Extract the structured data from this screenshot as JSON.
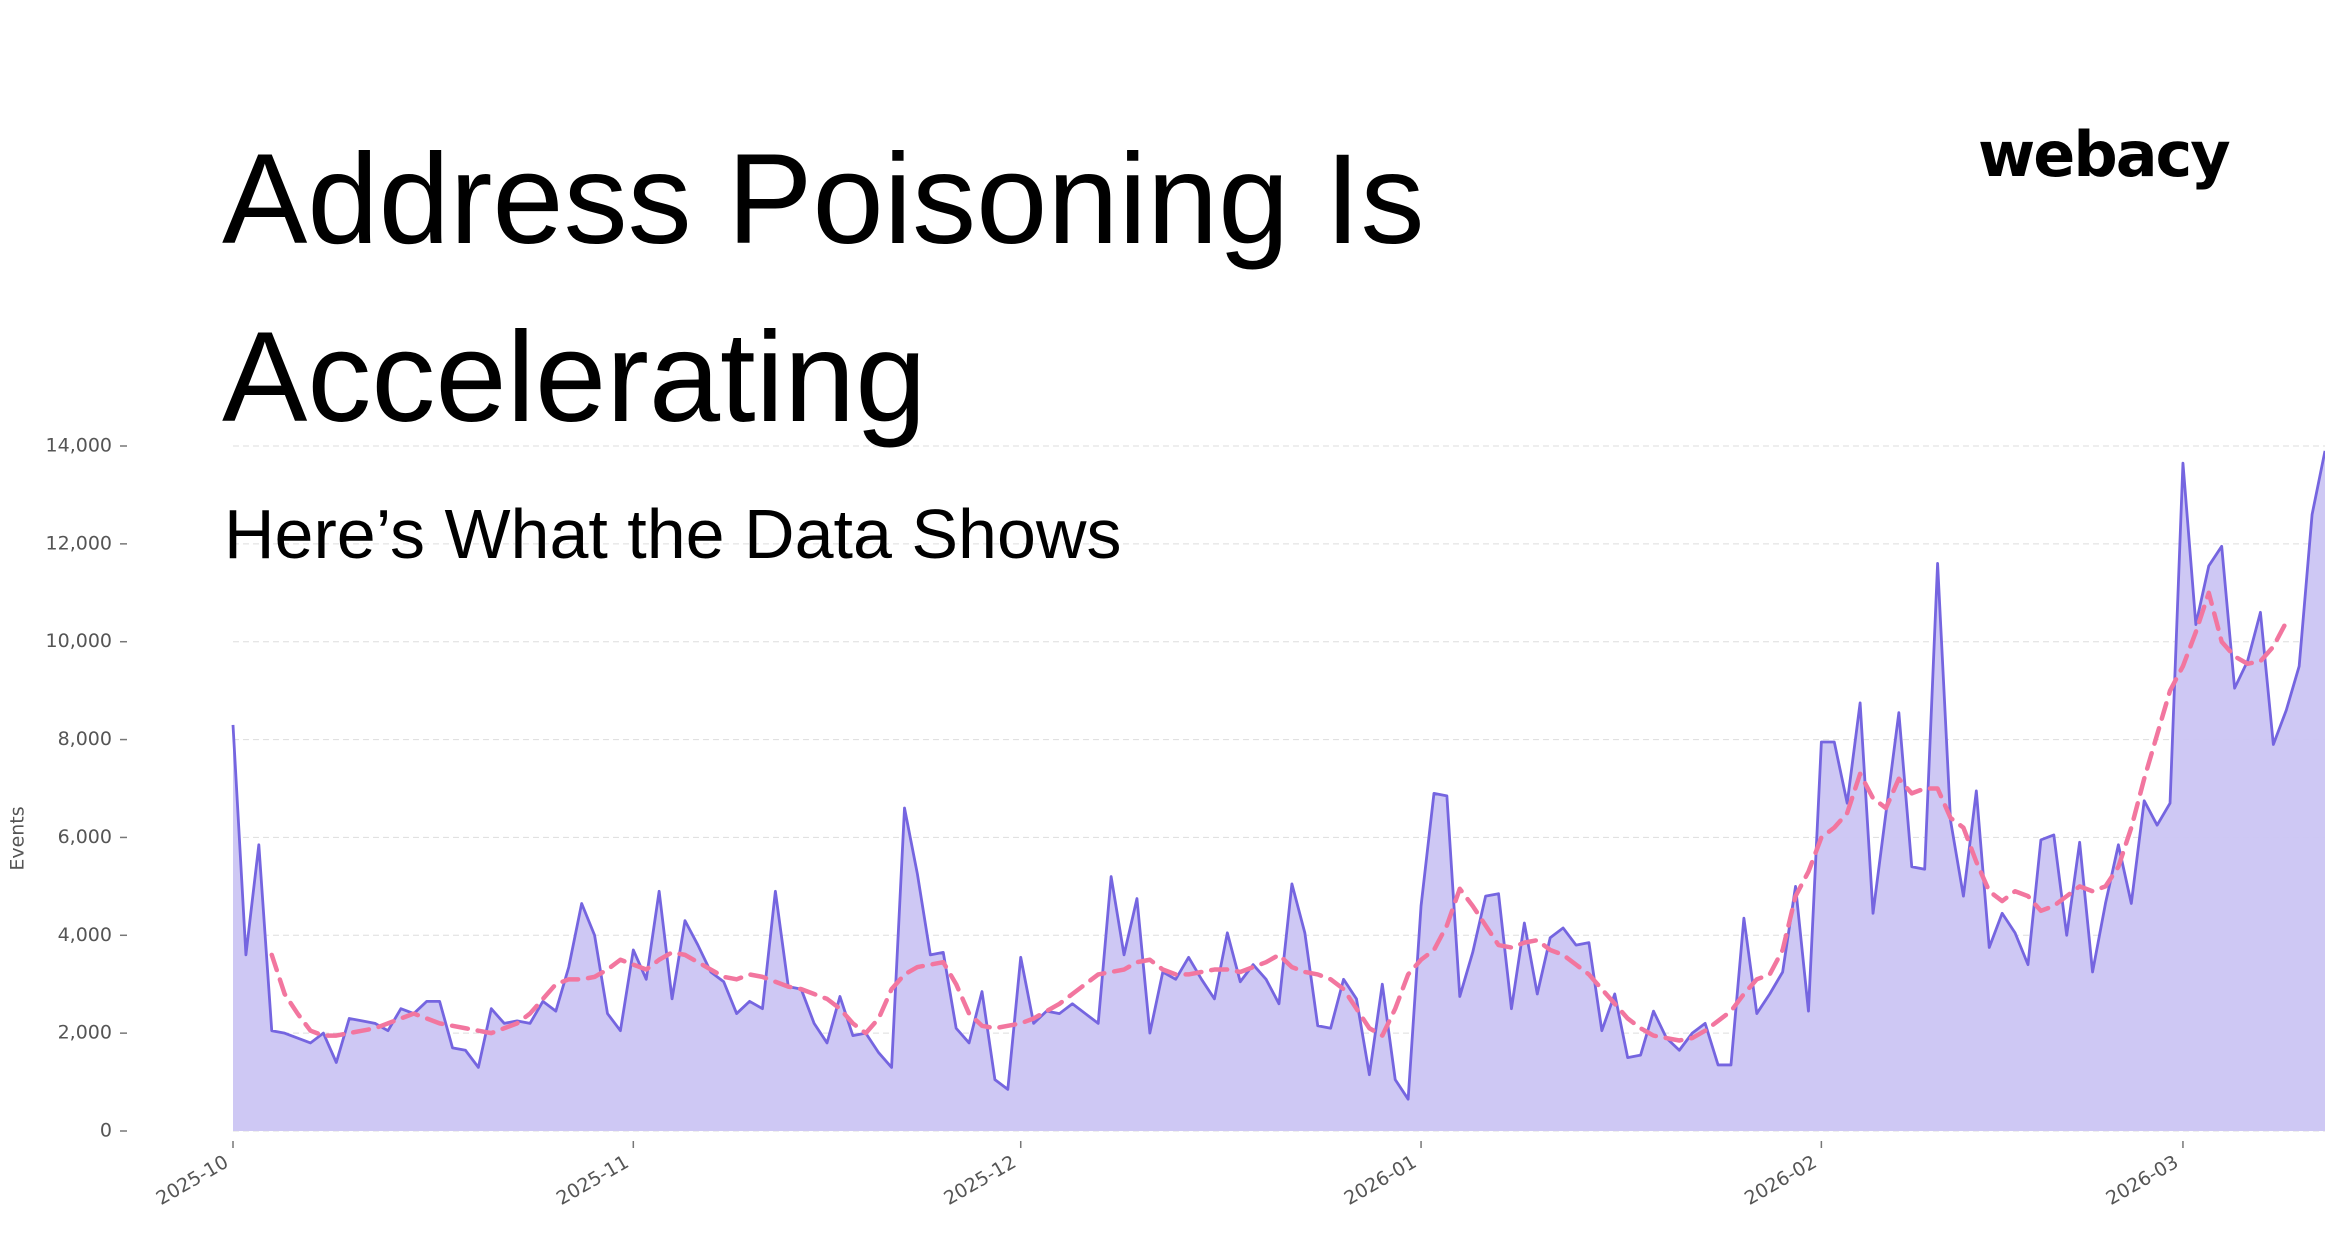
{
  "logo": "webacy",
  "chart_data": {
    "type": "area",
    "title": "Address Poisoning Is Accelerating",
    "subtitle": "Here’s What the Data Shows",
    "y_label": "Events",
    "x": [
      0,
      1,
      2,
      3,
      4,
      5,
      6,
      7,
      8,
      9,
      10,
      11,
      12,
      13,
      14,
      15,
      16,
      17,
      18,
      19,
      20,
      21,
      22,
      23,
      24,
      25,
      26,
      27,
      28,
      29,
      30,
      31,
      32,
      33,
      34,
      35,
      36,
      37,
      38,
      39,
      40,
      41,
      42,
      43,
      44,
      45,
      46,
      47,
      48,
      49,
      50,
      51,
      52,
      53,
      54,
      55,
      56,
      57,
      58,
      59,
      60,
      61,
      62,
      63,
      64,
      65,
      66,
      67,
      68,
      69,
      70,
      71,
      72,
      73,
      74,
      75,
      76,
      77,
      78,
      79,
      80,
      81,
      82,
      83,
      84,
      85,
      86,
      87,
      88,
      89,
      90,
      91,
      92,
      93,
      94,
      95,
      96,
      97,
      98,
      99,
      100,
      101,
      102,
      103,
      104,
      105,
      106,
      107,
      108,
      109,
      110,
      111,
      112,
      113,
      114,
      115,
      116,
      117,
      118,
      119,
      120,
      121,
      122,
      123,
      124,
      125,
      126,
      127,
      128,
      129,
      130,
      131,
      132,
      133,
      134,
      135,
      136,
      137,
      138,
      139,
      140,
      141,
      142,
      143,
      144,
      145,
      146,
      147,
      148,
      149,
      150,
      151,
      152,
      153,
      154,
      155,
      156,
      157,
      158,
      159,
      160,
      161,
      162
    ],
    "series": [
      {
        "color": "#7565e0",
        "fill": "#cbc5f3",
        "line_style": "solid",
        "values": [
          8300,
          3600,
          5850,
          2050,
          2000,
          1900,
          1800,
          2000,
          1400,
          2300,
          2250,
          2200,
          2050,
          2500,
          2400,
          2650,
          2650,
          1700,
          1650,
          1300,
          2500,
          2200,
          2250,
          2200,
          2650,
          2450,
          3350,
          4650,
          4000,
          2400,
          2050,
          3700,
          3100,
          4900,
          2700,
          4300,
          3800,
          3250,
          3050,
          2400,
          2650,
          2500,
          4900,
          2950,
          2900,
          2200,
          1800,
          2750,
          1950,
          2000,
          1600,
          1300,
          6600,
          5250,
          3600,
          3650,
          2100,
          1800,
          2850,
          1050,
          850,
          3550,
          2200,
          2450,
          2400,
          2600,
          2400,
          2200,
          5200,
          3600,
          4750,
          2000,
          3250,
          3100,
          3550,
          3100,
          2700,
          4050,
          3050,
          3400,
          3100,
          2600,
          5050,
          4050,
          2150,
          2100,
          3100,
          2700,
          1150,
          3000,
          1050,
          650,
          4600,
          6900,
          6850,
          2750,
          3650,
          4800,
          4850,
          2500,
          4250,
          2800,
          3950,
          4150,
          3800,
          3850,
          2050,
          2800,
          1500,
          1550,
          2450,
          1900,
          1650,
          2000,
          2200,
          1350,
          1350,
          4350,
          2400,
          2800,
          3250,
          5000,
          2450,
          7950,
          7950,
          6700,
          8750,
          4450,
          6500,
          8550,
          5400,
          5350,
          11600,
          6350,
          4800,
          6950,
          3750,
          4450,
          4050,
          3400,
          5950,
          6050,
          4000,
          5900,
          3250,
          4650,
          5850,
          4650,
          6750,
          6250,
          6700,
          13650,
          10350,
          11550,
          11950,
          9050,
          9600,
          10600,
          7900,
          8600,
          9500,
          12600,
          13900
        ]
      },
      {
        "color": "#f2769f",
        "line_style": "dashed",
        "values": [
          null,
          null,
          null,
          3600,
          2800,
          2400,
          2050,
          1950,
          1950,
          2000,
          2050,
          2100,
          2200,
          2300,
          2400,
          2300,
          2200,
          2150,
          2100,
          2050,
          2000,
          2100,
          2200,
          2400,
          2700,
          3000,
          3100,
          3100,
          3150,
          3300,
          3500,
          3400,
          3300,
          3500,
          3650,
          3600,
          3450,
          3300,
          3150,
          3100,
          3200,
          3150,
          3050,
          2950,
          2900,
          2800,
          2700,
          2500,
          2200,
          2000,
          2300,
          2900,
          3200,
          3350,
          3400,
          3450,
          3000,
          2400,
          2150,
          2100,
          2150,
          2200,
          2300,
          2450,
          2600,
          2800,
          3000,
          3200,
          3250,
          3300,
          3450,
          3500,
          3300,
          3200,
          3200,
          3250,
          3300,
          3300,
          3250,
          3350,
          3450,
          3600,
          3350,
          3250,
          3200,
          3100,
          2900,
          2500,
          2100,
          1950,
          2500,
          3200,
          3500,
          3700,
          4200,
          4950,
          4600,
          4200,
          3800,
          3750,
          3850,
          3900,
          3700,
          3600,
          3400,
          3200,
          2900,
          2600,
          2300,
          2100,
          1950,
          1900,
          1850,
          1900,
          2050,
          2250,
          2450,
          2800,
          3100,
          3200,
          3700,
          4800,
          5300,
          6000,
          6200,
          6500,
          7300,
          6800,
          6600,
          7200,
          6900,
          7000,
          7000,
          6400,
          6200,
          5500,
          4900,
          4700,
          4900,
          4800,
          4500,
          4600,
          4800,
          5000,
          4900,
          5000,
          5400,
          6200,
          7200,
          8100,
          9000,
          9500,
          10200,
          11000,
          10000,
          9700,
          9550,
          9600,
          9900,
          10400,
          null,
          null,
          null
        ]
      }
    ],
    "xlim": [
      0,
      162
    ],
    "xticks": [
      {
        "value": 0,
        "label": "2025-10"
      },
      {
        "value": 31,
        "label": "2025-11"
      },
      {
        "value": 61,
        "label": "2025-12"
      },
      {
        "value": 92,
        "label": "2026-01"
      },
      {
        "value": 123,
        "label": "2026-02"
      },
      {
        "value": 151,
        "label": "2026-03"
      }
    ],
    "ylim": [
      0,
      14000
    ],
    "yticks": [
      0,
      {
        "value": 2000,
        "label": "2,000"
      },
      {
        "value": 4000,
        "label": "4,000"
      },
      {
        "value": 6000,
        "label": "6,000"
      },
      {
        "value": 8000,
        "label": "8,000"
      },
      {
        "value": 10000,
        "label": "10,000"
      },
      {
        "value": 12000,
        "label": "12,000"
      },
      {
        "value": 14000,
        "label": "14,000"
      }
    ],
    "grid": true
  }
}
